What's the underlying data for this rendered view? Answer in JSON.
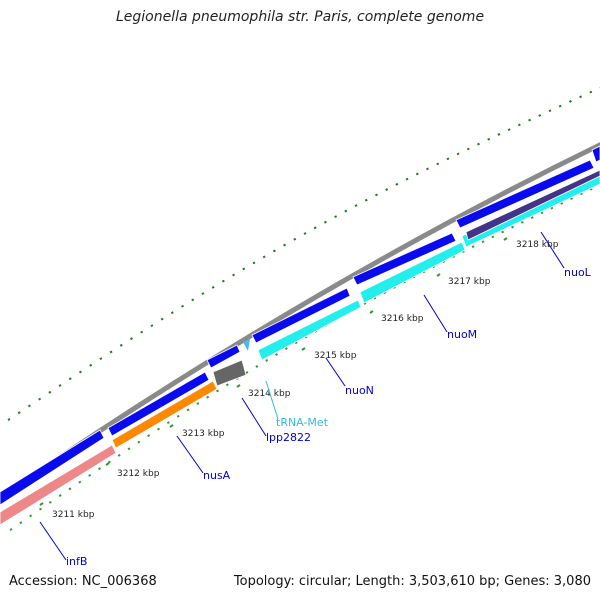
{
  "title": "Legionella pneumophila str. Paris, complete genome",
  "footer": {
    "accession": "Accession: NC_006368",
    "summary": "Topology: circular; Length: 3,503,610 bp; Genes: 3,080"
  },
  "kbp_labels": [
    "3211 kbp",
    "3212 kbp",
    "3213 kbp",
    "3214 kbp",
    "3215 kbp",
    "3216 kbp",
    "3217 kbp",
    "3218 kbp"
  ],
  "gene_labels": [
    {
      "name": "infB",
      "color": "#0000cc"
    },
    {
      "name": "nusA",
      "color": "#0000cc"
    },
    {
      "name": "lpp2822",
      "color": "#0000cc"
    },
    {
      "name": "tRNA-Met",
      "color": "#33bbdd"
    },
    {
      "name": "nuoN",
      "color": "#0000cc"
    },
    {
      "name": "nuoM",
      "color": "#0000cc"
    },
    {
      "name": "nuoL",
      "color": "#0000cc"
    }
  ],
  "colors": {
    "backbone": "#8a8a8a",
    "forward_cds": "#0a0aee",
    "reverse_cds_cyan": "#22eeee",
    "reverse_cds_orange": "#ff8800",
    "reverse_cds_pink": "#ee8888",
    "reverse_cds_navy": "#443388",
    "pseudo_gray": "#666666",
    "trna": "#44bbee",
    "gc_ticks": "#227722",
    "tick": "#339933"
  }
}
